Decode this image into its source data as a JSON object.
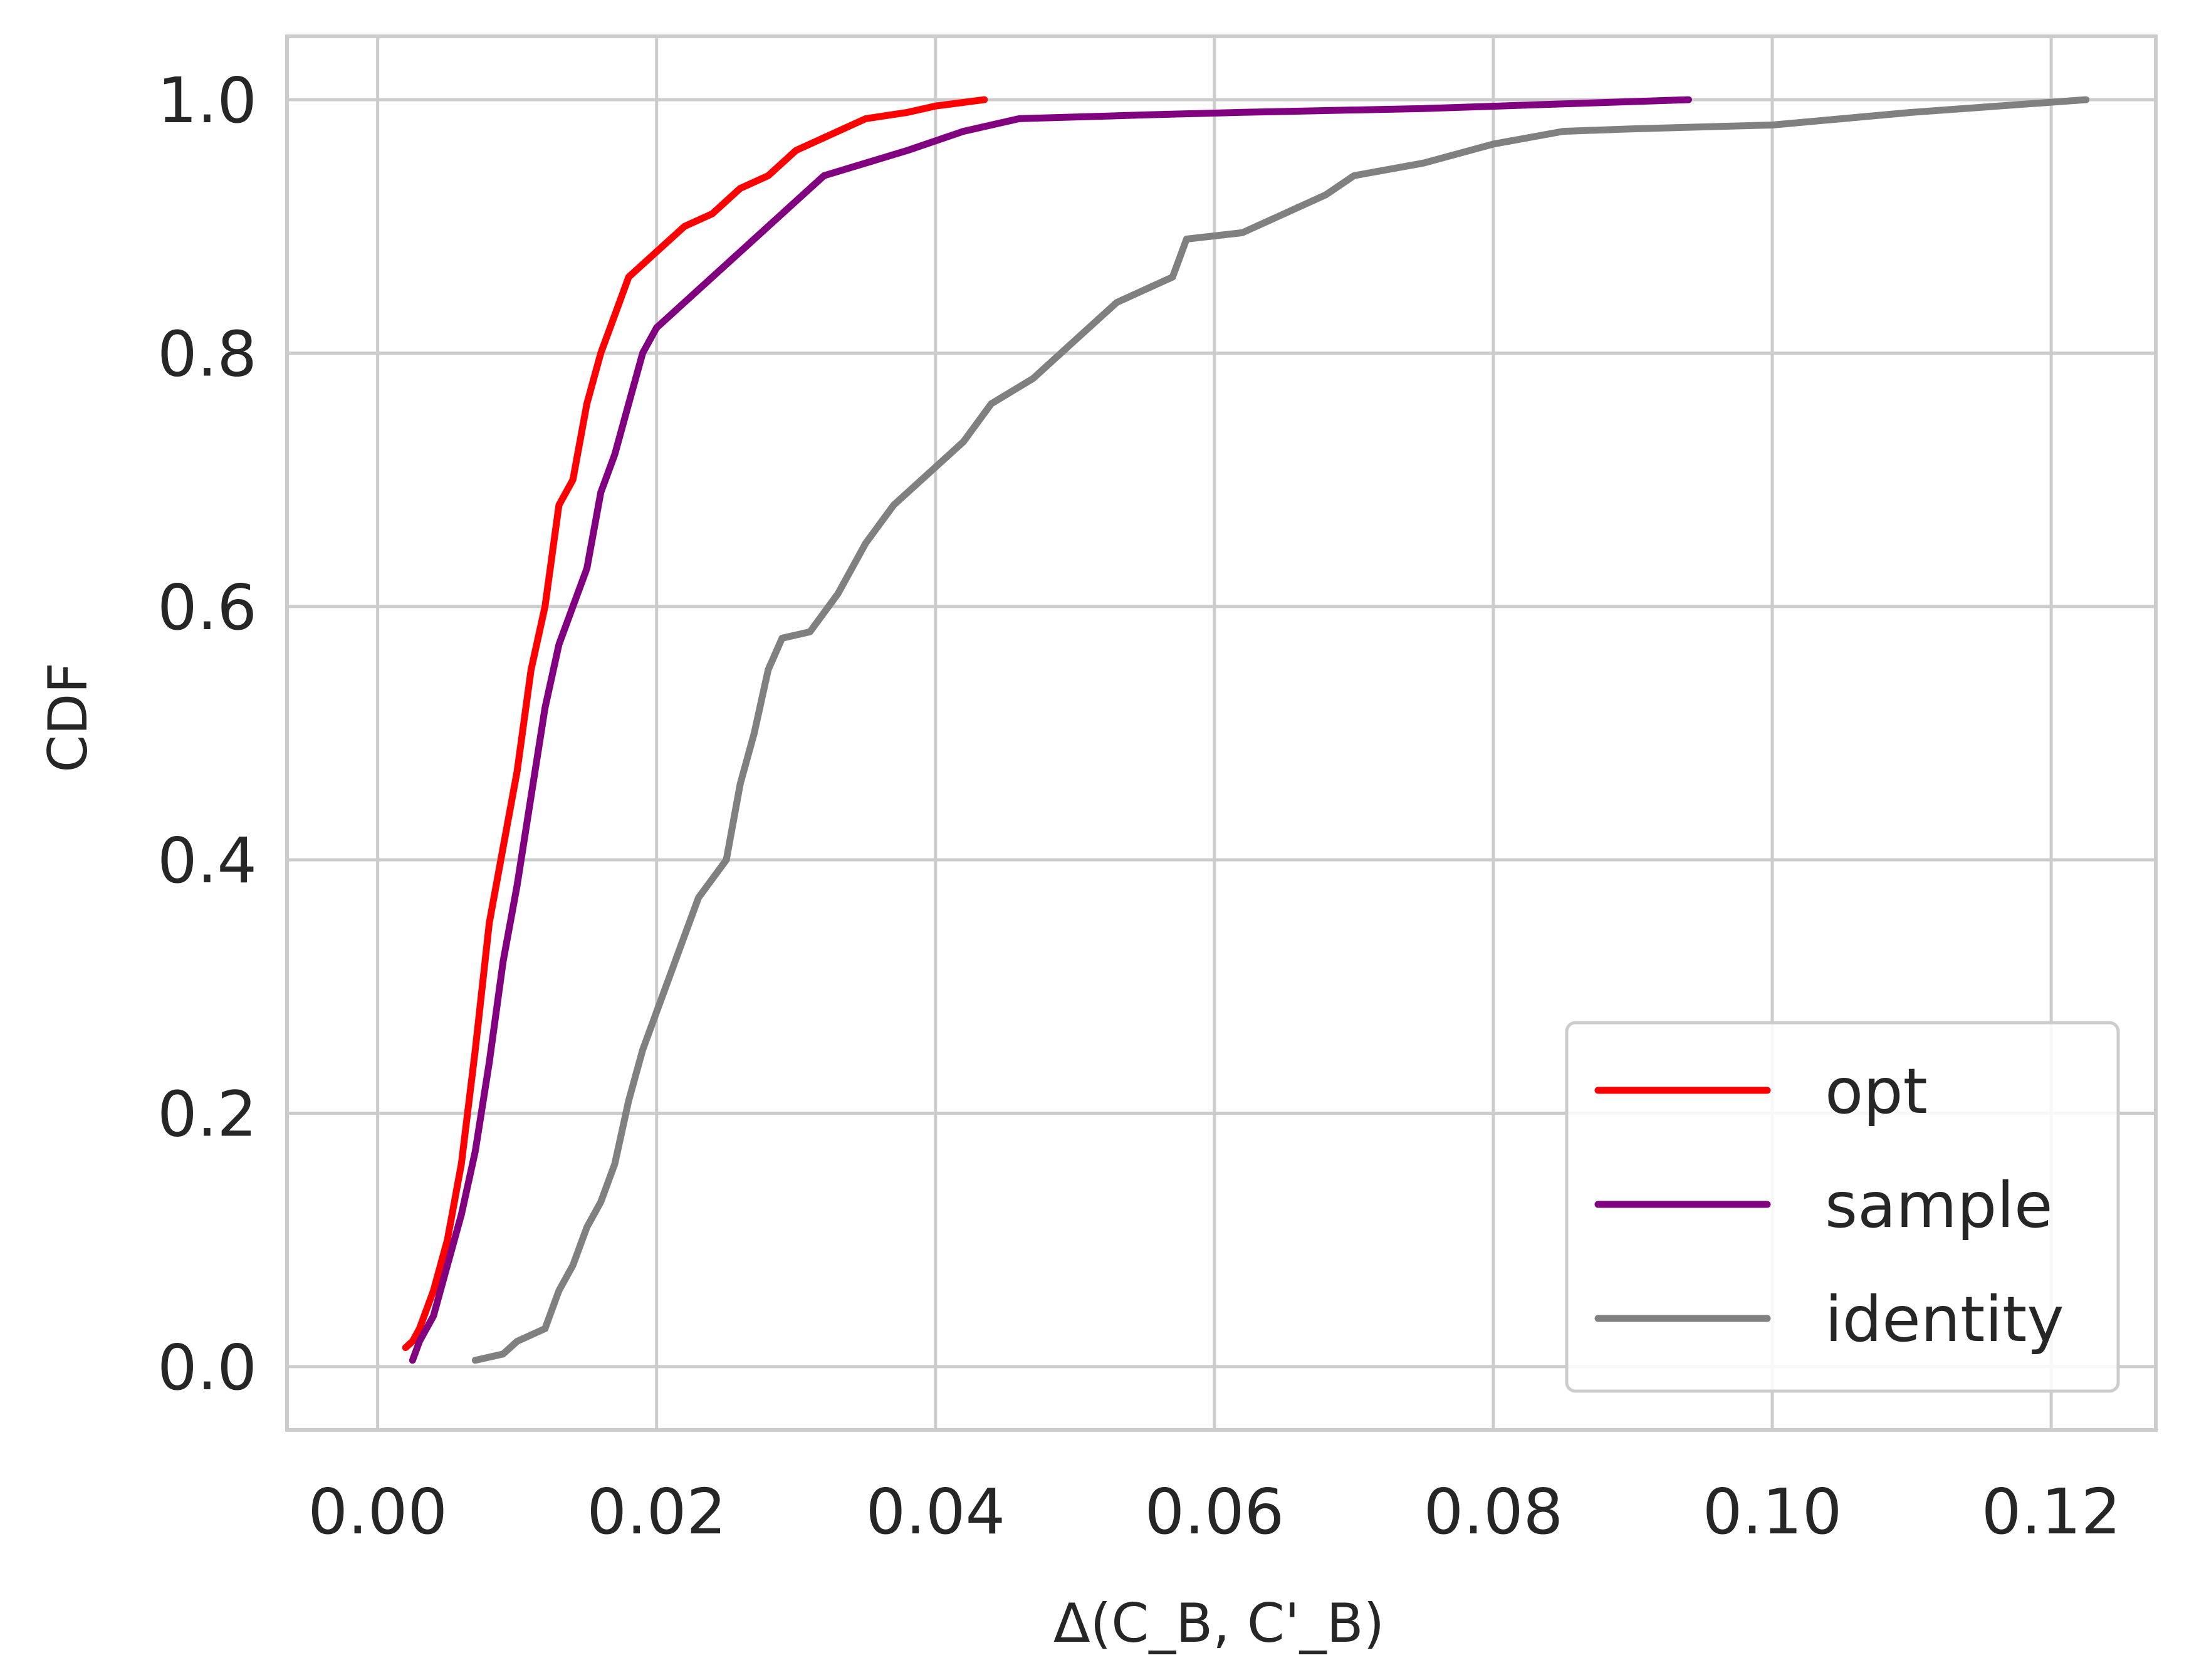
{
  "chart_data": {
    "type": "line",
    "xlabel": "Δ(C_B, C'_B)",
    "ylabel": "CDF",
    "xlim": [
      -0.0065,
      0.1275
    ],
    "ylim": [
      -0.05,
      1.05
    ],
    "xticks": [
      "0.00",
      "0.02",
      "0.04",
      "0.06",
      "0.08",
      "0.10",
      "0.12"
    ],
    "xtick_values": [
      0,
      0.02,
      0.04,
      0.06,
      0.08,
      0.1,
      0.12
    ],
    "yticks": [
      "0.0",
      "0.2",
      "0.4",
      "0.6",
      "0.8",
      "1.0"
    ],
    "ytick_values": [
      0,
      0.2,
      0.4,
      0.6,
      0.8,
      1.0
    ],
    "grid": true,
    "legend_position": "lower-right",
    "series": [
      {
        "name": "opt",
        "color": "#ff0000",
        "points": [
          [
            0.002,
            0.015
          ],
          [
            0.0025,
            0.02
          ],
          [
            0.003,
            0.03
          ],
          [
            0.004,
            0.06
          ],
          [
            0.005,
            0.1
          ],
          [
            0.006,
            0.16
          ],
          [
            0.007,
            0.25
          ],
          [
            0.008,
            0.35
          ],
          [
            0.009,
            0.41
          ],
          [
            0.01,
            0.47
          ],
          [
            0.011,
            0.55
          ],
          [
            0.012,
            0.6
          ],
          [
            0.013,
            0.68
          ],
          [
            0.014,
            0.7
          ],
          [
            0.015,
            0.76
          ],
          [
            0.016,
            0.8
          ],
          [
            0.017,
            0.83
          ],
          [
            0.018,
            0.86
          ],
          [
            0.02,
            0.88
          ],
          [
            0.022,
            0.9
          ],
          [
            0.024,
            0.91
          ],
          [
            0.026,
            0.93
          ],
          [
            0.028,
            0.94
          ],
          [
            0.03,
            0.96
          ],
          [
            0.032,
            0.97
          ],
          [
            0.035,
            0.985
          ],
          [
            0.038,
            0.99
          ],
          [
            0.04,
            0.995
          ],
          [
            0.0435,
            1.0
          ]
        ]
      },
      {
        "name": "sample",
        "color": "#800080",
        "points": [
          [
            0.0025,
            0.005
          ],
          [
            0.003,
            0.02
          ],
          [
            0.004,
            0.04
          ],
          [
            0.005,
            0.08
          ],
          [
            0.006,
            0.12
          ],
          [
            0.007,
            0.17
          ],
          [
            0.008,
            0.24
          ],
          [
            0.009,
            0.32
          ],
          [
            0.01,
            0.38
          ],
          [
            0.011,
            0.45
          ],
          [
            0.012,
            0.52
          ],
          [
            0.013,
            0.57
          ],
          [
            0.014,
            0.6
          ],
          [
            0.015,
            0.63
          ],
          [
            0.016,
            0.69
          ],
          [
            0.017,
            0.72
          ],
          [
            0.018,
            0.76
          ],
          [
            0.019,
            0.8
          ],
          [
            0.02,
            0.82
          ],
          [
            0.022,
            0.84
          ],
          [
            0.025,
            0.87
          ],
          [
            0.027,
            0.89
          ],
          [
            0.03,
            0.92
          ],
          [
            0.032,
            0.94
          ],
          [
            0.035,
            0.95
          ],
          [
            0.038,
            0.96
          ],
          [
            0.042,
            0.975
          ],
          [
            0.046,
            0.985
          ],
          [
            0.055,
            0.988
          ],
          [
            0.062,
            0.99
          ],
          [
            0.075,
            0.993
          ],
          [
            0.094,
            1.0
          ]
        ]
      },
      {
        "name": "identity",
        "color": "#808080",
        "points": [
          [
            0.007,
            0.005
          ],
          [
            0.009,
            0.01
          ],
          [
            0.01,
            0.02
          ],
          [
            0.012,
            0.03
          ],
          [
            0.013,
            0.06
          ],
          [
            0.014,
            0.08
          ],
          [
            0.015,
            0.11
          ],
          [
            0.016,
            0.13
          ],
          [
            0.017,
            0.16
          ],
          [
            0.018,
            0.21
          ],
          [
            0.019,
            0.25
          ],
          [
            0.02,
            0.28
          ],
          [
            0.021,
            0.31
          ],
          [
            0.022,
            0.34
          ],
          [
            0.023,
            0.37
          ],
          [
            0.025,
            0.4
          ],
          [
            0.026,
            0.46
          ],
          [
            0.027,
            0.5
          ],
          [
            0.028,
            0.55
          ],
          [
            0.029,
            0.575
          ],
          [
            0.031,
            0.58
          ],
          [
            0.033,
            0.61
          ],
          [
            0.035,
            0.65
          ],
          [
            0.037,
            0.68
          ],
          [
            0.04,
            0.71
          ],
          [
            0.042,
            0.73
          ],
          [
            0.044,
            0.76
          ],
          [
            0.047,
            0.78
          ],
          [
            0.05,
            0.81
          ],
          [
            0.053,
            0.84
          ],
          [
            0.057,
            0.86
          ],
          [
            0.058,
            0.89
          ],
          [
            0.062,
            0.895
          ],
          [
            0.065,
            0.91
          ],
          [
            0.068,
            0.925
          ],
          [
            0.07,
            0.94
          ],
          [
            0.075,
            0.95
          ],
          [
            0.08,
            0.965
          ],
          [
            0.085,
            0.975
          ],
          [
            0.09,
            0.977
          ],
          [
            0.1,
            0.98
          ],
          [
            0.11,
            0.99
          ],
          [
            0.1225,
            1.0
          ]
        ]
      }
    ]
  }
}
